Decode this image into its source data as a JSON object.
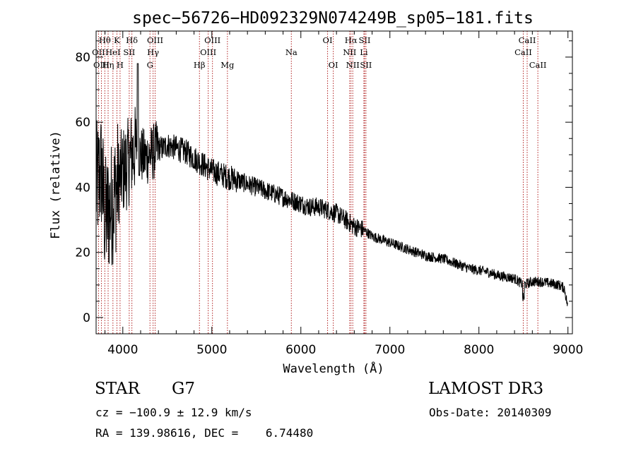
{
  "chart_data": {
    "type": "line",
    "title": "spec−56726−HD092329N074249B_sp05−181.fits",
    "xlabel": "Wavelength (Å)",
    "ylabel": "Flux (relative)",
    "xlim": [
      3700,
      9050
    ],
    "ylim": [
      -5,
      88
    ],
    "xticks": [
      4000,
      5000,
      6000,
      7000,
      8000,
      9000
    ],
    "yticks": [
      0,
      20,
      40,
      60,
      80
    ],
    "grid": false,
    "series": [
      {
        "name": "spectrum",
        "x": [
          3700,
          3760,
          3800,
          3850,
          3900,
          3950,
          4000,
          4050,
          4100,
          4150,
          4200,
          4250,
          4300,
          4350,
          4400,
          4450,
          4500,
          4600,
          4700,
          4800,
          4900,
          5000,
          5100,
          5200,
          5300,
          5400,
          5500,
          5600,
          5700,
          5800,
          5900,
          6000,
          6100,
          6200,
          6300,
          6400,
          6500,
          6600,
          6700,
          6800,
          6900,
          7000,
          7100,
          7200,
          7300,
          7400,
          7500,
          7600,
          7700,
          7800,
          7900,
          8000,
          8100,
          8200,
          8300,
          8400,
          8500,
          8600,
          8700,
          8800,
          8900,
          8960,
          9000
        ],
        "y": [
          40,
          45,
          30,
          33,
          37,
          42,
          45,
          47,
          50,
          52,
          50,
          49,
          50,
          51,
          52,
          52,
          53,
          52,
          51,
          49,
          47,
          45,
          44,
          43,
          42,
          41,
          40,
          39,
          38,
          37,
          36,
          35,
          34,
          34,
          33,
          32,
          30,
          28,
          27,
          25,
          24,
          23,
          22,
          21,
          20,
          19,
          18.5,
          18,
          17,
          16,
          15,
          14.5,
          14,
          13,
          12.5,
          12,
          10,
          11,
          11,
          10.5,
          10,
          9,
          3
        ]
      }
    ],
    "line_labels": [
      {
        "label": "Hθ",
        "x": 3798,
        "row": 0
      },
      {
        "label": "OII",
        "x": 3727,
        "row": 1
      },
      {
        "label": "OIII",
        "x": 3760,
        "row": 2
      },
      {
        "label": "K",
        "x": 3934,
        "row": 0
      },
      {
        "label": "HeI",
        "x": 3889,
        "row": 1
      },
      {
        "label": "Hη",
        "x": 3835,
        "row": 2
      },
      {
        "label": "Hδ",
        "x": 4102,
        "row": 0
      },
      {
        "label": "SII",
        "x": 4072,
        "row": 1
      },
      {
        "label": "H",
        "x": 3969,
        "row": 2
      },
      {
        "label": "OIII",
        "x": 4363,
        "row": 0
      },
      {
        "label": "Hγ",
        "x": 4340,
        "row": 1
      },
      {
        "label": "G",
        "x": 4305,
        "row": 2
      },
      {
        "label": "OIII",
        "x": 5007,
        "row": 0
      },
      {
        "label": "OIII",
        "x": 4959,
        "row": 1
      },
      {
        "label": "Hβ",
        "x": 4861,
        "row": 2
      },
      {
        "label": "Mg",
        "x": 5175,
        "row": 2
      },
      {
        "label": "Na",
        "x": 5893,
        "row": 1
      },
      {
        "label": "OI",
        "x": 6300,
        "row": 0
      },
      {
        "label": "OI",
        "x": 6364,
        "row": 2
      },
      {
        "label": "Hα",
        "x": 6563,
        "row": 0
      },
      {
        "label": "NII",
        "x": 6548,
        "row": 1
      },
      {
        "label": "NII",
        "x": 6583,
        "row": 2
      },
      {
        "label": "SII",
        "x": 6716,
        "row": 0
      },
      {
        "label": "Li",
        "x": 6708,
        "row": 1
      },
      {
        "label": "SII",
        "x": 6731,
        "row": 2
      },
      {
        "label": "CaII",
        "x": 8542,
        "row": 0
      },
      {
        "label": "CaII",
        "x": 8498,
        "row": 1
      },
      {
        "label": "CaII",
        "x": 8662,
        "row": 2
      }
    ]
  },
  "info": {
    "object_type": "STAR",
    "subclass": "G7",
    "survey": "LAMOST DR3",
    "cz": "cz = −100.9 ± 12.9 km/s",
    "obs_date": "Obs-Date: 20140309",
    "coords": "RA = 139.98616, DEC =    6.74480"
  },
  "colors": {
    "line_marker": "#b22222",
    "spectrum": "#000000"
  }
}
